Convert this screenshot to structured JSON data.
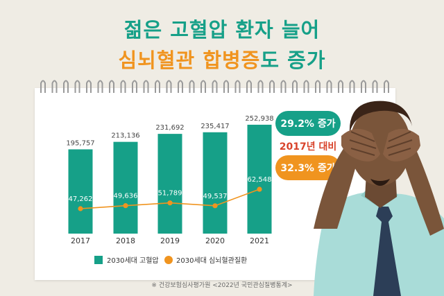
{
  "title": {
    "line1": "젊은 고혈압 환자 늘어",
    "line2_highlight": "심뇌혈관 합병증",
    "line2_rest": "도 증가"
  },
  "callouts": {
    "hypertension_increase": "29.2% 증가",
    "comparison_base": "2017년 대비",
    "cardio_increase": "32.3% 증가"
  },
  "source": "※ 건강보험심사평가원 <2022년 국민관심질병통계>",
  "colors": {
    "bar": "#16a088",
    "line": "#f0941f",
    "title_green": "#16a088",
    "title_orange": "#f0941f",
    "callout_red": "#d8432b"
  },
  "chart_data": {
    "type": "bar",
    "categories": [
      "2017",
      "2018",
      "2019",
      "2020",
      "2021"
    ],
    "series": [
      {
        "name": "2030세대 고혈압",
        "type": "bar",
        "values": [
          195757,
          213136,
          231692,
          235417,
          252938
        ],
        "labels": [
          "195,757",
          "213,136",
          "231,692",
          "235,417",
          "252,938"
        ]
      },
      {
        "name": "2030세대 심뇌혈관질환",
        "type": "line",
        "values": [
          47262,
          49636,
          51789,
          49537,
          62548
        ],
        "labels": [
          "47,262",
          "49,636",
          "51,789",
          "49,537",
          "62,548"
        ]
      }
    ],
    "legend_position": "bottom",
    "grid": false
  }
}
